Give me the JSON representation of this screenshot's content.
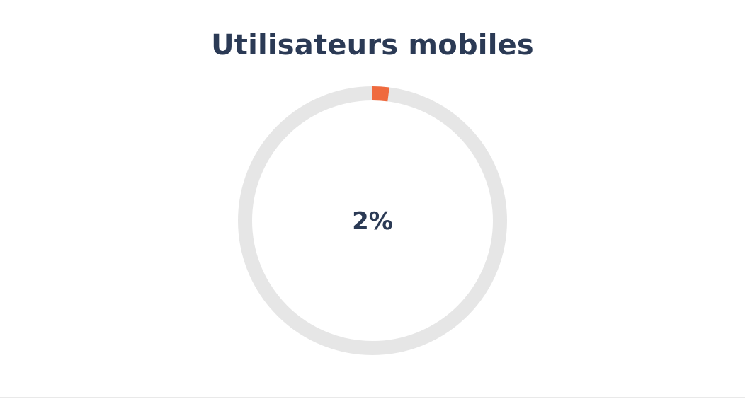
{
  "chart_data": {
    "type": "pie",
    "title": "Utilisateurs mobiles",
    "center_label": "2%",
    "value_percent": 2,
    "slices": [
      {
        "label": "",
        "value": 2
      },
      {
        "label": "",
        "value": 98
      }
    ]
  },
  "colors": {
    "accent": "#ef6a3e",
    "track": "#e6e6e6",
    "text": "#2b3a55"
  }
}
